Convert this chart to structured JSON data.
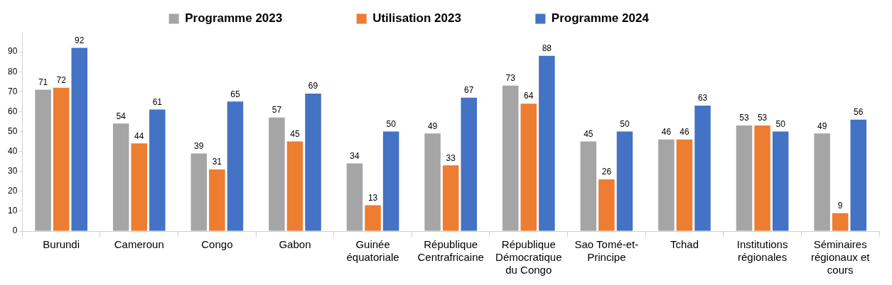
{
  "chart_data": {
    "type": "bar",
    "categories": [
      "Burundi",
      "Cameroun",
      "Congo",
      "Gabon",
      "Guinée équatoriale",
      "République Centrafricaine",
      "République Démocratique du Congo",
      "Sao Tomé-et-Principe",
      "Tchad",
      "Institutions régionales",
      "Séminaires régionaux et cours"
    ],
    "series": [
      {
        "name": "Programme 2023",
        "color": "#a5a5a5",
        "values": [
          71,
          54,
          39,
          57,
          34,
          49,
          73,
          45,
          46,
          53,
          49
        ]
      },
      {
        "name": "Utilisation 2023",
        "color": "#ed7d31",
        "values": [
          72,
          44,
          31,
          45,
          13,
          33,
          64,
          26,
          46,
          53,
          9
        ]
      },
      {
        "name": "Programme 2024",
        "color": "#4472c4",
        "values": [
          92,
          61,
          65,
          69,
          50,
          67,
          88,
          50,
          63,
          50,
          56
        ]
      }
    ],
    "ylim": [
      0,
      100
    ],
    "yticks": [
      0,
      10,
      20,
      30,
      40,
      50,
      60,
      70,
      80,
      90
    ],
    "grid": false,
    "legend": "top",
    "data_labels": true
  }
}
